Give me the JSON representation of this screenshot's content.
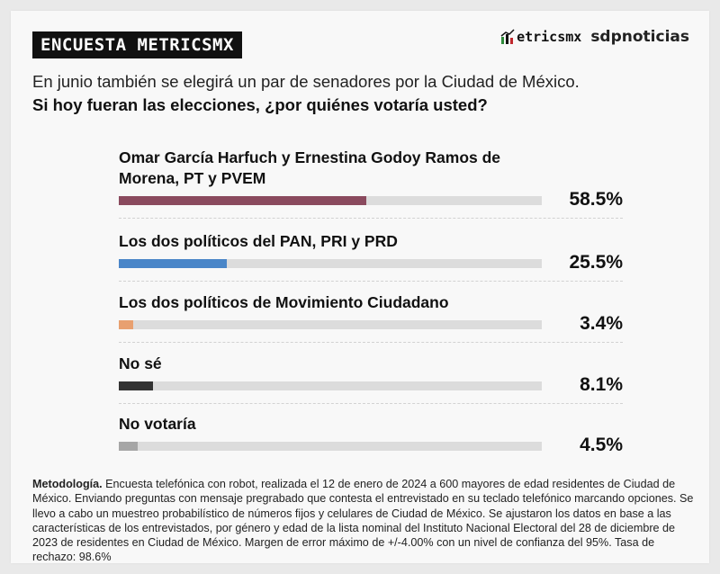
{
  "header": {
    "badge": "ENCUESTA METRICSMX",
    "metrics_logo": "etricsmx",
    "sdp_logo": "sdpnoticias"
  },
  "intro": "En junio también se elegirá un par de senadores por la Ciudad de México.",
  "question": "Si hoy fueran las elecciones, ¿por quiénes votaría usted?",
  "chart_data": {
    "type": "bar",
    "orientation": "horizontal",
    "xlim": [
      0,
      100
    ],
    "categories": [
      "Omar García Harfuch y Ernestina Godoy Ramos de Morena, PT y PVEM",
      "Los dos políticos del PAN, PRI y PRD",
      "Los dos políticos de Movimiento Ciudadano",
      "No sé",
      "No votaría"
    ],
    "values": [
      58.5,
      25.5,
      3.4,
      8.1,
      4.5
    ],
    "value_labels": [
      "58.5%",
      "25.5%",
      "3.4%",
      "8.1%",
      "4.5%"
    ],
    "colors": [
      "#8a4a5e",
      "#4a86c8",
      "#e8a070",
      "#333333",
      "#a6a6a6"
    ],
    "track_color": "#dcdcdc"
  },
  "methodology": {
    "label": "Metodología.",
    "text": " Encuesta telefónica con robot, realizada el 12 de enero de 2024 a 600 mayores de edad residentes de Ciudad de México. Enviando preguntas con mensaje pregrabado que contesta el entrevistado en su teclado telefónico marcando opciones. Se llevo a cabo un muestreo probabilístico de números fijos y celulares de Ciudad de México. Se ajustaron los datos en base a las características de los entrevistados, por género y edad de la lista nominal del Instituto Nacional Electoral del 28 de diciembre de 2023 de residentes en Ciudad de México. Margen de error máximo de +/-4.00% con un nivel de confianza del 95%. Tasa de rechazo: 98.6%"
  }
}
